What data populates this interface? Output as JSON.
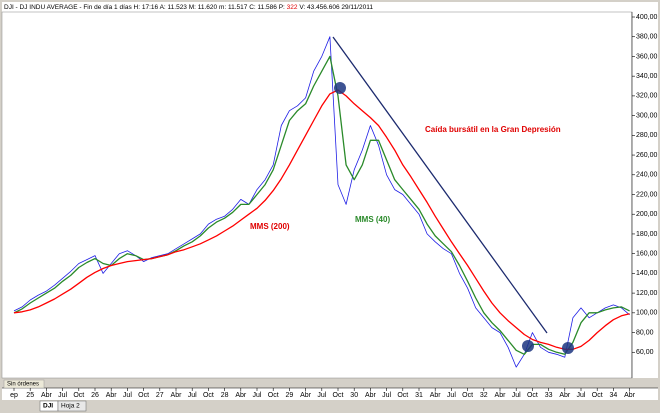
{
  "toolbar": {
    "text": "DJI - DJ INDU AVERAGE - Fin de día 1 días  H: 17:16  A: 11.523  M: 11.620  m: 11.517  C: 11.586  P:",
    "highlight": "322",
    "rest": "V: 43.456.606  29/11/2011"
  },
  "status": "Sin órdenes",
  "tabs": [
    "DJI",
    "Hoja 2"
  ],
  "chart_data": {
    "type": "line",
    "annotation": "Caída bursátil en la Gran Depresión",
    "categories": [
      "ep",
      null,
      "25",
      null,
      "Abr",
      null,
      "Jul",
      null,
      "Oct",
      null,
      "26",
      null,
      "Abr",
      null,
      "Jul",
      null,
      "Oct",
      null,
      "27",
      null,
      "Abr",
      null,
      "Jul",
      null,
      "Oct",
      null,
      "28",
      null,
      "Abr",
      null,
      "Jul",
      null,
      "Oct",
      null,
      "29",
      null,
      "Abr",
      null,
      "Jul",
      null,
      "Oct",
      null,
      "30",
      null,
      "Abr",
      null,
      "Jul",
      null,
      "Oct",
      null,
      "31",
      null,
      "Abr",
      null,
      "Jul",
      null,
      "Oct",
      null,
      "32",
      null,
      "Abr",
      null,
      "Jul",
      null,
      "Oct",
      null,
      "33",
      null,
      "Abr",
      null,
      "Jul",
      null,
      "Oct",
      null,
      "34",
      null,
      "Abr"
    ],
    "series": [
      {
        "color": "#1f1fe6",
        "values": [
          102,
          106,
          113,
          118,
          122,
          128,
          135,
          142,
          150,
          154,
          158,
          140,
          150,
          160,
          163,
          158,
          152,
          156,
          158,
          160,
          165,
          170,
          175,
          180,
          190,
          195,
          198,
          205,
          215,
          210,
          225,
          235,
          250,
          290,
          305,
          310,
          318,
          345,
          360,
          380,
          230,
          210,
          245,
          265,
          290,
          270,
          240,
          225,
          220,
          210,
          200,
          180,
          172,
          165,
          160,
          140,
          125,
          105,
          95,
          85,
          80,
          65,
          45,
          58,
          80,
          65,
          60,
          58,
          55,
          95,
          105,
          95,
          100,
          105,
          108,
          105,
          98
        ]
      },
      {
        "name": "MMS (40)",
        "color": "#2a8a2a",
        "values": [
          100,
          104,
          110,
          115,
          120,
          125,
          132,
          138,
          146,
          151,
          155,
          150,
          148,
          155,
          160,
          158,
          154,
          155,
          157,
          159,
          163,
          168,
          172,
          178,
          186,
          192,
          196,
          202,
          210,
          210,
          220,
          230,
          245,
          270,
          295,
          305,
          312,
          330,
          345,
          360,
          320,
          250,
          235,
          250,
          275,
          275,
          255,
          235,
          225,
          215,
          205,
          190,
          178,
          170,
          162,
          148,
          132,
          115,
          100,
          90,
          82,
          72,
          62,
          58,
          68,
          68,
          63,
          60,
          58,
          70,
          90,
          100,
          100,
          103,
          105,
          106,
          102
        ]
      },
      {
        "name": "MMS (200)",
        "color": "#ff0000",
        "values": [
          100,
          101,
          103,
          106,
          110,
          114,
          119,
          124,
          130,
          136,
          141,
          145,
          148,
          150,
          152,
          153,
          154,
          155,
          157,
          159,
          162,
          164,
          167,
          170,
          174,
          178,
          183,
          188,
          194,
          200,
          206,
          214,
          224,
          236,
          250,
          265,
          280,
          295,
          310,
          322,
          326,
          320,
          312,
          305,
          298,
          290,
          278,
          265,
          250,
          238,
          225,
          212,
          198,
          185,
          172,
          160,
          148,
          135,
          122,
          110,
          100,
          92,
          85,
          78,
          73,
          70,
          68,
          65,
          63,
          63,
          66,
          72,
          80,
          87,
          93,
          97,
          99
        ]
      }
    ],
    "ylim": [
      40,
      400
    ],
    "yticks": [
      {
        "value": 60,
        "label": "60,00"
      },
      {
        "value": 80,
        "label": "80,00"
      },
      {
        "value": 100,
        "label": "100,00"
      },
      {
        "value": 120,
        "label": "120,00"
      },
      {
        "value": 140,
        "label": "140,00"
      },
      {
        "value": 160,
        "label": "160,00"
      },
      {
        "value": 180,
        "label": "180,00"
      },
      {
        "value": 200,
        "label": "200,00"
      },
      {
        "value": 220,
        "label": "220,00"
      },
      {
        "value": 240,
        "label": "240,00"
      },
      {
        "value": 260,
        "label": "260,00"
      },
      {
        "value": 280,
        "label": "280,00"
      },
      {
        "value": 300,
        "label": "300,00"
      },
      {
        "value": 320,
        "label": "320,00"
      },
      {
        "value": 340,
        "label": "340,00"
      },
      {
        "value": 360,
        "label": "360,00"
      },
      {
        "value": 380,
        "label": "380,00"
      },
      {
        "value": 400,
        "label": "400,00"
      }
    ],
    "grid": false
  }
}
